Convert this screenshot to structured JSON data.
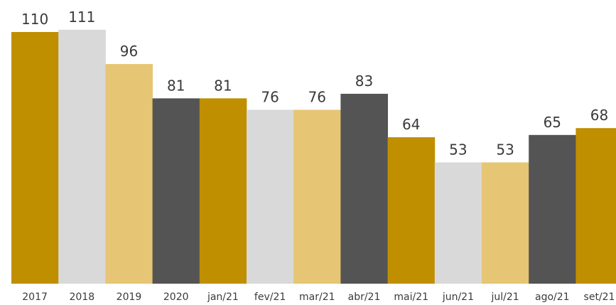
{
  "chart_data": {
    "type": "bar",
    "title": "",
    "xlabel": "",
    "ylabel": "",
    "ylim": [
      0,
      111
    ],
    "grid": false,
    "legend": "none",
    "categories": [
      "2017",
      "2018",
      "2019",
      "2020",
      "jan/21",
      "fev/21",
      "mar/21",
      "abr/21",
      "mai/21",
      "jun/21",
      "jul/21",
      "ago/21",
      "set/21"
    ],
    "values": [
      110,
      111,
      96,
      81,
      81,
      76,
      76,
      83,
      64,
      53,
      53,
      65,
      68
    ],
    "bar_colors": [
      "#bf8f00",
      "#d9d9d9",
      "#e6c574",
      "#545454",
      "#bf8f00",
      "#d9d9d9",
      "#e6c574",
      "#545454",
      "#bf8f00",
      "#d9d9d9",
      "#e6c574",
      "#545454",
      "#bf8f00"
    ],
    "data_labels": [
      "110",
      "111",
      "96",
      "81",
      "81",
      "76",
      "76",
      "83",
      "64",
      "53",
      "53",
      "65",
      "68"
    ]
  }
}
